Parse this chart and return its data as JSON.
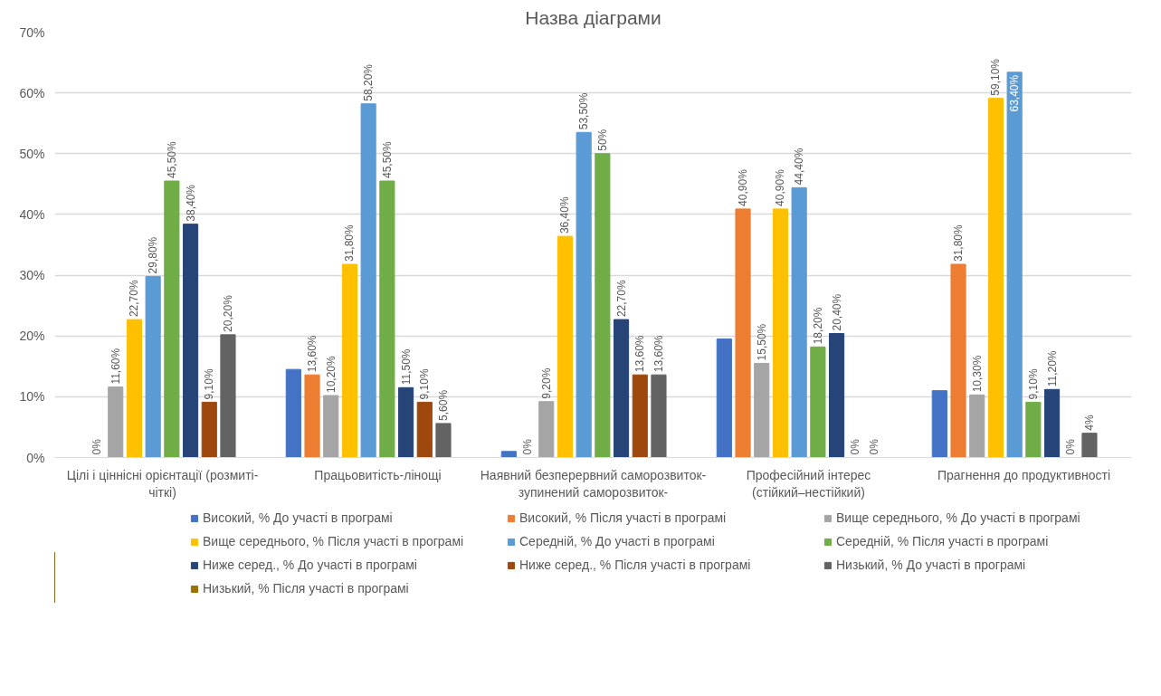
{
  "chart_data": {
    "type": "bar",
    "title": "Назва діаграми",
    "categories": [
      "Цілі і ціннісні орієнтації (розмиті-чіткі)",
      "Працьовитість-лінощі",
      "Наявний безперервний саморозвиток-зупинений саморозвиток-",
      "Професійний інтерес (стійкий–нестійкий)",
      "Прагнення до продуктивності"
    ],
    "series": [
      {
        "name": "Високий, % До участі в програмі",
        "color": "#4472c4",
        "values": [
          null,
          14.5,
          1,
          19.5,
          11
        ],
        "value_labels": [
          null,
          null,
          null,
          null,
          null
        ]
      },
      {
        "name": "Високий, % Після участі в програмі",
        "color": "#ed7d31",
        "values": [
          0,
          13.6,
          0,
          40.9,
          31.8
        ],
        "value_labels": [
          "0%",
          "13,60%",
          "0%",
          "40,90%",
          "31,80%"
        ]
      },
      {
        "name": "Вище середнього, % До участі в програмі",
        "color": "#a5a5a5",
        "values": [
          11.6,
          10.2,
          9.2,
          15.5,
          10.3
        ],
        "value_labels": [
          "11,60%",
          "10,20%",
          "9,20%",
          "15,50%",
          "10,30%"
        ]
      },
      {
        "name": "Вище середнього, % Після участі в програмі",
        "color": "#ffc000",
        "values": [
          22.7,
          31.8,
          36.4,
          40.9,
          59.1
        ],
        "value_labels": [
          "22,70%",
          "31,80%",
          "36,40%",
          "40,90%",
          "59,10%"
        ]
      },
      {
        "name": "Середній, % До участі в програмі",
        "color": "#5b9bd5",
        "values": [
          29.8,
          58.2,
          53.5,
          44.4,
          63.4
        ],
        "value_labels": [
          "29,80%",
          "58,20%",
          "53,50%",
          "44,40%",
          "63,40%"
        ]
      },
      {
        "name": "Середній, % Після участі в програмі",
        "color": "#70ad47",
        "values": [
          45.5,
          45.5,
          50,
          18.2,
          9.1
        ],
        "value_labels": [
          "45,50%",
          "45,50%",
          "50%",
          "18,20%",
          "9,10%"
        ]
      },
      {
        "name": "Ниже серед., % До участі в програмі",
        "color": "#264478",
        "values": [
          38.4,
          11.5,
          22.7,
          20.4,
          11.2
        ],
        "value_labels": [
          "38,40%",
          "11,50%",
          "22,70%",
          "20,40%",
          "11,20%"
        ]
      },
      {
        "name": "Ниже серед., % Після участі в програмі",
        "color": "#9e480e",
        "values": [
          9.1,
          9.1,
          13.6,
          0,
          0
        ],
        "value_labels": [
          "9,10%",
          "9,10%",
          "13,60%",
          "0%",
          "0%"
        ]
      },
      {
        "name": "Низький, % До участі в програмі",
        "color": "#636363",
        "values": [
          20.2,
          5.6,
          13.6,
          0,
          4
        ],
        "value_labels": [
          "20,20%",
          "5,60%",
          "13,60%",
          "0%",
          "4%"
        ]
      },
      {
        "name": "Низький, % Після участі в програмі",
        "color": "#997300",
        "values": [
          null,
          null,
          null,
          null,
          null
        ],
        "value_labels": [
          null,
          null,
          null,
          null,
          null
        ]
      }
    ],
    "ylim": [
      0,
      70
    ],
    "yticks": [
      {
        "value": 0,
        "label": "0%"
      },
      {
        "value": 10,
        "label": "10%"
      },
      {
        "value": 20,
        "label": "20%"
      },
      {
        "value": 30,
        "label": "30%"
      },
      {
        "value": 40,
        "label": "40%"
      },
      {
        "value": 50,
        "label": "50%"
      },
      {
        "value": 60,
        "label": "60%"
      },
      {
        "value": 70,
        "label": "70%"
      }
    ],
    "grid": "y",
    "legend": "bottom"
  }
}
